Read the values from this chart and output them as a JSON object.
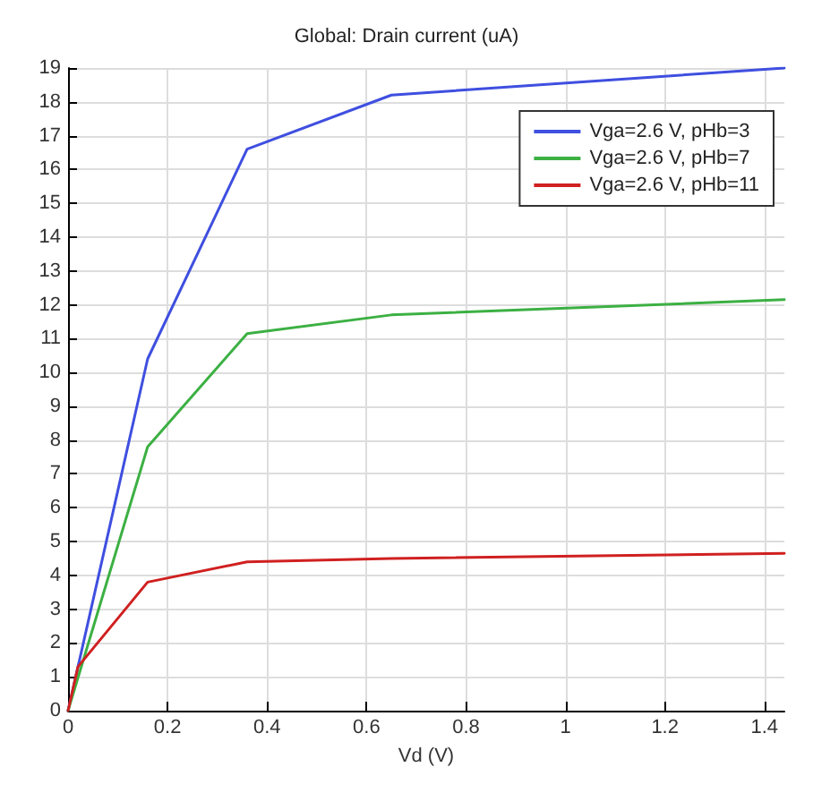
{
  "chart_data": {
    "type": "line",
    "title": "Global: Drain current (uA)",
    "xlabel": "Vd (V)",
    "xlim": [
      0,
      1.44
    ],
    "xticks": [
      0,
      0.2,
      0.4,
      0.6,
      0.8,
      1,
      1.2,
      1.4
    ],
    "ylim": [
      0,
      19
    ],
    "yticks": [
      0,
      1,
      2,
      3,
      4,
      5,
      6,
      7,
      8,
      9,
      10,
      11,
      12,
      13,
      14,
      15,
      16,
      17,
      18,
      19
    ],
    "grid": true,
    "legend": "top right",
    "marker": "none",
    "line_style": "solid",
    "x": [
      0,
      0.16,
      0.36,
      0.65,
      1.44
    ],
    "series": [
      {
        "name": "Vga=2.6 V, pHb=3",
        "color": "#3f4fe0",
        "values": [
          0,
          10.4,
          16.6,
          18.2,
          19.0
        ]
      },
      {
        "name": "Vga=2.6 V, pHb=7",
        "color": "#3cb043",
        "values": [
          0,
          7.8,
          11.15,
          11.7,
          12.15
        ]
      },
      {
        "name": "Vga=2.6 V, pHb=11",
        "color": "#d02020",
        "x": [
          0,
          0.02,
          0.16,
          0.36,
          0.65,
          1.44
        ],
        "values": [
          0,
          1.3,
          3.8,
          4.4,
          4.5,
          4.65
        ]
      }
    ]
  }
}
